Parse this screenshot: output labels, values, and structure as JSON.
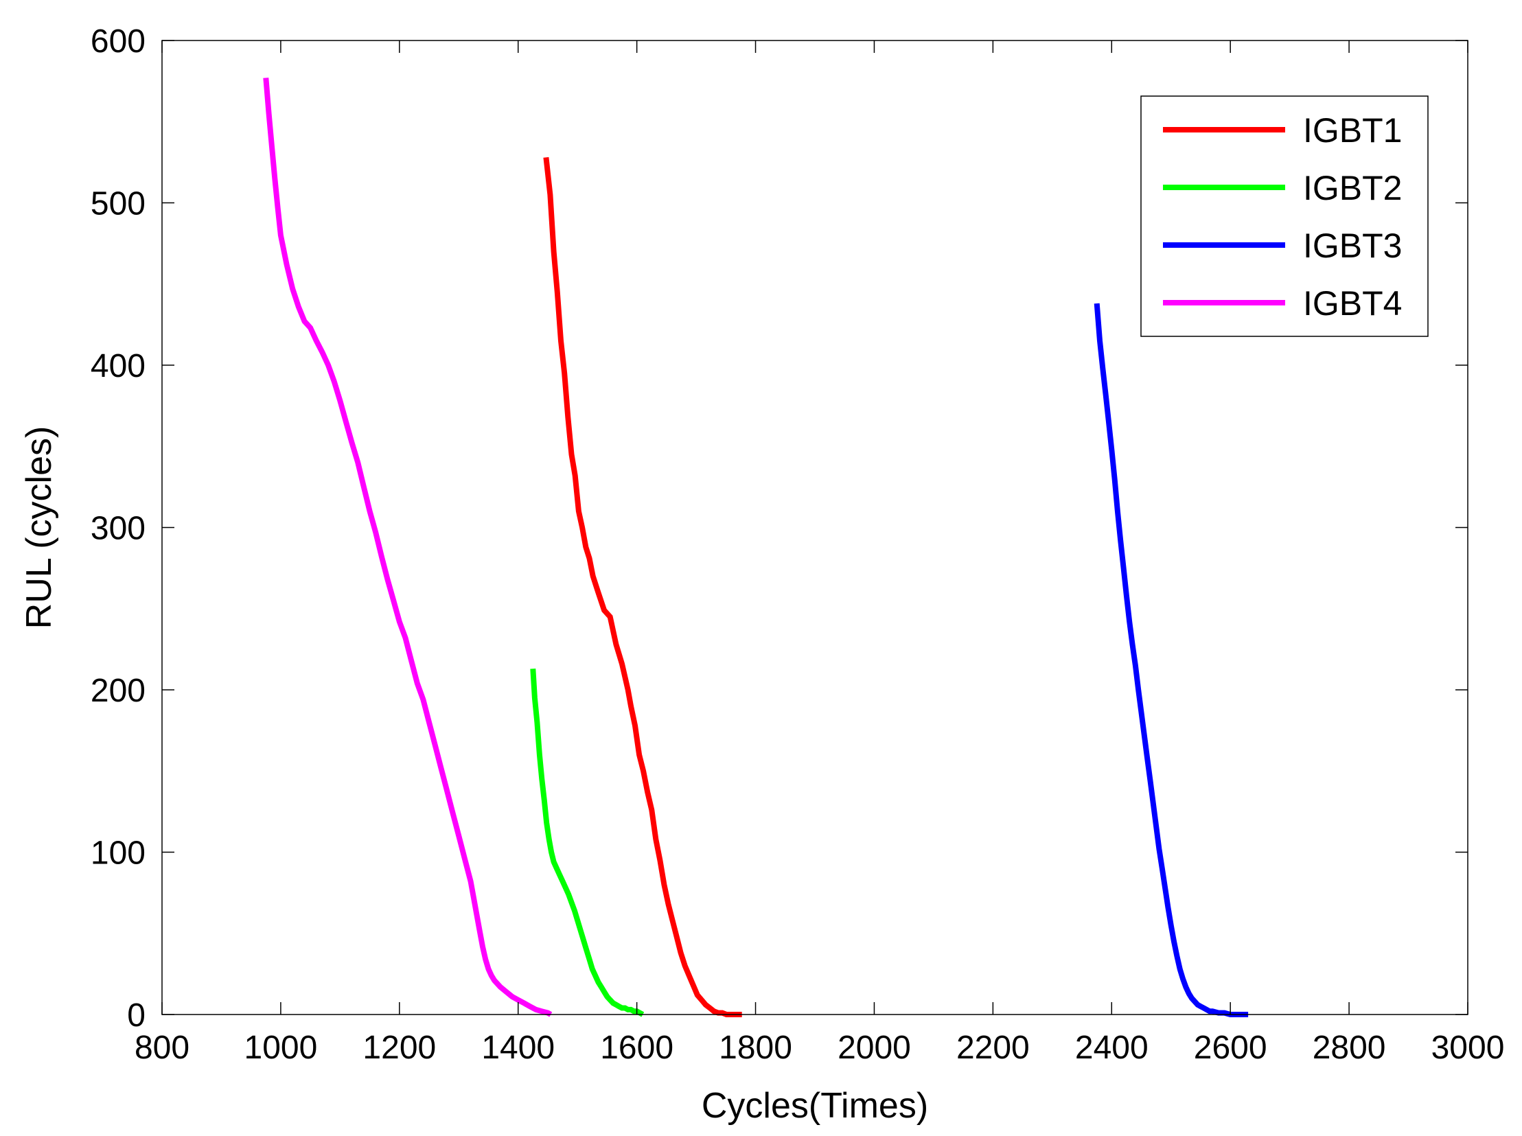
{
  "chart_data": {
    "type": "line",
    "title": "",
    "xlabel": "Cycles(Times)",
    "ylabel": "RUL (cycles)",
    "xlim": [
      800,
      3000
    ],
    "ylim": [
      0,
      600
    ],
    "xticks": [
      800,
      1000,
      1200,
      1400,
      1600,
      1800,
      2000,
      2200,
      2400,
      2600,
      2800,
      3000
    ],
    "yticks": [
      0,
      100,
      200,
      300,
      400,
      500,
      600
    ],
    "grid": false,
    "legend_position": "top-right",
    "series": [
      {
        "name": "IGBT1",
        "color": "#ff0000",
        "x": [
          1447,
          1454,
          1460,
          1466,
          1472,
          1478,
          1484,
          1490,
          1496,
          1502,
          1508,
          1514,
          1520,
          1526,
          1535,
          1545,
          1555,
          1565,
          1575,
          1585,
          1590,
          1597,
          1604,
          1611,
          1618,
          1625,
          1632,
          1639,
          1646,
          1653,
          1660,
          1667,
          1674,
          1681,
          1688,
          1695,
          1702,
          1709,
          1716,
          1723,
          1730,
          1737,
          1744,
          1751,
          1758,
          1765,
          1772,
          1777
        ],
        "y": [
          528,
          505,
          470,
          445,
          415,
          395,
          368,
          345,
          332,
          310,
          300,
          288,
          281,
          270,
          260,
          249,
          245,
          228,
          216,
          200,
          190,
          178,
          160,
          150,
          137,
          126,
          108,
          95,
          80,
          68,
          58,
          48,
          38,
          30,
          24,
          18,
          12,
          9,
          6,
          4,
          2,
          1,
          1,
          0,
          0,
          0,
          0,
          0
        ]
      },
      {
        "name": "IGBT2",
        "color": "#00ff00",
        "x": [
          1425,
          1428,
          1432,
          1436,
          1440,
          1444,
          1448,
          1452,
          1456,
          1460,
          1465,
          1470,
          1475,
          1480,
          1485,
          1490,
          1495,
          1500,
          1505,
          1510,
          1515,
          1520,
          1525,
          1530,
          1535,
          1540,
          1545,
          1550,
          1555,
          1560,
          1565,
          1570,
          1575,
          1580,
          1585,
          1590,
          1595,
          1600,
          1605,
          1610
        ],
        "y": [
          213,
          195,
          180,
          160,
          145,
          132,
          118,
          108,
          100,
          94,
          90,
          86,
          82,
          78,
          74,
          69,
          64,
          58,
          52,
          46,
          40,
          34,
          28,
          24,
          20,
          17,
          14,
          11,
          9,
          7,
          6,
          5,
          4,
          4,
          3,
          3,
          2,
          2,
          1,
          0
        ]
      },
      {
        "name": "IGBT3",
        "color": "#0000ff",
        "x": [
          2375,
          2380,
          2385,
          2390,
          2395,
          2400,
          2405,
          2410,
          2415,
          2420,
          2425,
          2430,
          2435,
          2440,
          2445,
          2450,
          2455,
          2460,
          2465,
          2470,
          2475,
          2480,
          2485,
          2490,
          2495,
          2500,
          2505,
          2510,
          2515,
          2520,
          2525,
          2530,
          2535,
          2540,
          2545,
          2550,
          2555,
          2560,
          2565,
          2570,
          2580,
          2590,
          2600,
          2610,
          2620,
          2630
        ],
        "y": [
          438,
          415,
          398,
          382,
          365,
          348,
          330,
          310,
          292,
          275,
          258,
          242,
          228,
          215,
          200,
          186,
          172,
          158,
          144,
          130,
          116,
          102,
          90,
          78,
          66,
          55,
          45,
          36,
          28,
          22,
          17,
          13,
          10,
          8,
          6,
          5,
          4,
          3,
          2,
          2,
          1,
          1,
          0,
          0,
          0,
          0
        ]
      },
      {
        "name": "IGBT4",
        "color": "#ff00ff",
        "x": [
          975,
          980,
          985,
          990,
          995,
          1000,
          1010,
          1020,
          1030,
          1040,
          1050,
          1060,
          1070,
          1080,
          1090,
          1100,
          1110,
          1120,
          1130,
          1140,
          1150,
          1160,
          1170,
          1180,
          1190,
          1200,
          1210,
          1220,
          1230,
          1240,
          1250,
          1260,
          1270,
          1280,
          1290,
          1300,
          1310,
          1320,
          1325,
          1330,
          1335,
          1340,
          1345,
          1350,
          1355,
          1360,
          1370,
          1380,
          1390,
          1400,
          1410,
          1420,
          1430,
          1440,
          1450,
          1455
        ],
        "y": [
          577,
          555,
          535,
          515,
          497,
          480,
          462,
          447,
          436,
          427,
          423,
          415,
          408,
          400,
          390,
          378,
          365,
          352,
          340,
          325,
          310,
          297,
          282,
          268,
          255,
          242,
          232,
          218,
          204,
          194,
          180,
          166,
          152,
          138,
          124,
          110,
          96,
          82,
          72,
          62,
          52,
          42,
          34,
          28,
          24,
          21,
          17,
          14,
          11,
          9,
          7,
          5,
          3,
          2,
          1,
          0
        ]
      }
    ]
  }
}
